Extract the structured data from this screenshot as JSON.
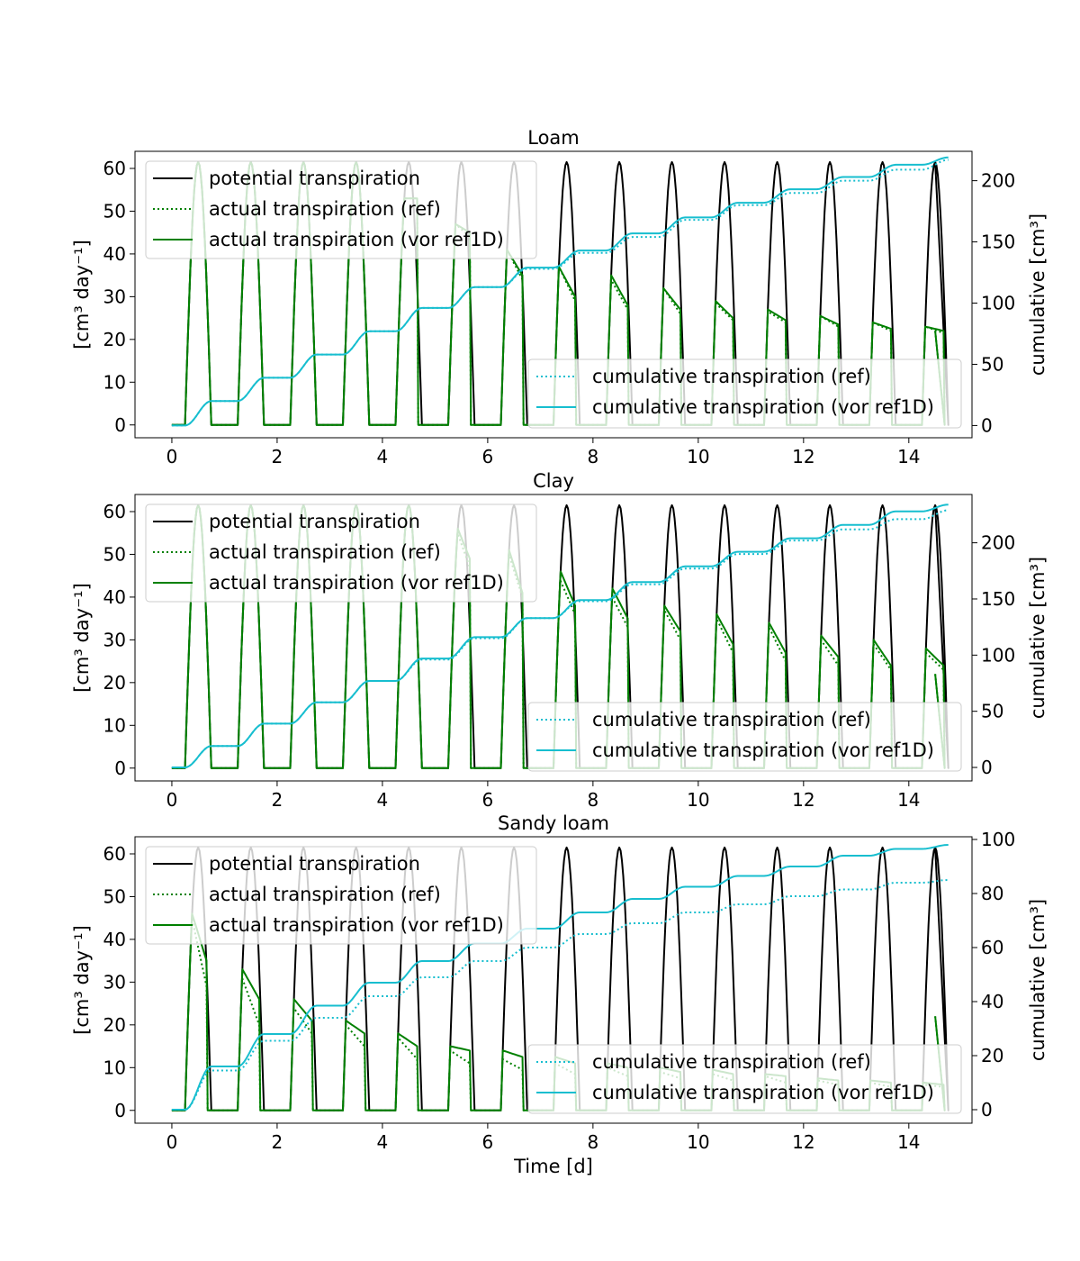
{
  "figure": {
    "xlabel": "Time [d]"
  },
  "legend_left": [
    "potential transpiration",
    " actual transpiration (ref)",
    " actual transpiration (vor ref1D)"
  ],
  "legend_right": [
    "cumulative transpiration (ref)",
    "cumulative transpiration (vor ref1D)"
  ],
  "colors": {
    "potential": "#000000",
    "actual": "#008000",
    "cumulative": "#17becf"
  },
  "chart_data": [
    {
      "type": "line",
      "title": "Loam",
      "ylabel": "[cm³ day⁻¹]",
      "ylabel2": "cumulative [cm³]",
      "xlim": [
        -0.7,
        15.2
      ],
      "ylim": [
        -3,
        64
      ],
      "ylim2": [
        -10,
        224
      ],
      "xticks": [
        0,
        2,
        4,
        6,
        8,
        10,
        12,
        14
      ],
      "yticks": [
        0,
        10,
        20,
        30,
        40,
        50,
        60
      ],
      "yticks2": [
        0,
        50,
        100,
        150,
        200
      ],
      "potential_peak": 61.5,
      "actual_ref_peaks": [
        61.5,
        61.5,
        61.5,
        61.5,
        53,
        47,
        41,
        37,
        34,
        32,
        28.5,
        26.5,
        25.5,
        24,
        23
      ],
      "actual_ref_ends": [
        61.5,
        61.5,
        61.5,
        61.5,
        53,
        44,
        34,
        29,
        27,
        26,
        24.5,
        24,
        23,
        22,
        21.5
      ],
      "actual_vor_peaks": [
        61.5,
        61.5,
        61.5,
        61.5,
        53,
        47,
        41,
        37,
        35,
        32,
        29,
        27,
        25.5,
        24,
        23
      ],
      "actual_vor_ends": [
        61.5,
        61.5,
        61.5,
        61.5,
        53,
        45,
        35,
        30,
        28,
        27,
        25,
        24.5,
        23.5,
        22.5,
        22
      ],
      "cum_ref_daily": [
        0,
        20,
        39,
        58,
        77,
        96,
        113,
        128,
        141,
        154,
        168,
        180,
        190,
        200,
        209,
        217
      ],
      "cum_vor_daily": [
        0,
        20,
        39,
        58,
        77,
        96,
        113,
        129,
        143,
        157,
        170,
        182,
        193,
        203,
        213,
        219
      ]
    },
    {
      "type": "line",
      "title": "Clay",
      "ylabel": "[cm³ day⁻¹]",
      "ylabel2": "cumulative [cm³]",
      "xlim": [
        -0.7,
        15.2
      ],
      "ylim": [
        -3,
        64
      ],
      "ylim2": [
        -12,
        243
      ],
      "xticks": [
        0,
        2,
        4,
        6,
        8,
        10,
        12,
        14
      ],
      "yticks": [
        0,
        10,
        20,
        30,
        40,
        50,
        60
      ],
      "yticks2": [
        0,
        50,
        100,
        150,
        200
      ],
      "potential_peak": 61.5,
      "actual_ref_peaks": [
        61.5,
        61.5,
        61.5,
        61.5,
        61.5,
        55,
        50,
        44,
        40,
        37,
        35,
        33,
        30,
        29,
        27
      ],
      "actual_ref_ends": [
        61.5,
        61.5,
        61.5,
        61.5,
        61.5,
        47,
        40,
        36,
        33,
        30,
        27,
        25,
        24,
        23,
        23
      ],
      "actual_vor_peaks": [
        61.5,
        61.5,
        61.5,
        61.5,
        61.5,
        56,
        51,
        46,
        42,
        38,
        36,
        34,
        31,
        30,
        28
      ],
      "actual_vor_ends": [
        61.5,
        61.5,
        61.5,
        61.5,
        61.5,
        49,
        41,
        38,
        35,
        32,
        29,
        27,
        26,
        24,
        24
      ],
      "cum_ref_daily": [
        0,
        19,
        39,
        58,
        77,
        96,
        115,
        133,
        148,
        163,
        177,
        190,
        202,
        212,
        221,
        229
      ],
      "cum_vor_daily": [
        0,
        19,
        39,
        58,
        77,
        97,
        116,
        133,
        149,
        165,
        179,
        192,
        204,
        216,
        228,
        234
      ]
    },
    {
      "type": "line",
      "title": "Sandy loam",
      "ylabel": "[cm³ day⁻¹]",
      "ylabel2": "cumulative [cm³]",
      "xlim": [
        -0.7,
        15.2
      ],
      "ylim": [
        -3,
        64
      ],
      "ylim2": [
        -5,
        101
      ],
      "xticks": [
        0,
        2,
        4,
        6,
        8,
        10,
        12,
        14
      ],
      "yticks": [
        0,
        10,
        20,
        30,
        40,
        50,
        60
      ],
      "yticks2": [
        0,
        20,
        40,
        60,
        80,
        100
      ],
      "potential_peak": 61.5,
      "actual_ref_peaks": [
        45,
        31,
        24,
        20,
        17,
        14,
        12,
        11,
        10,
        9,
        8.5,
        8,
        7,
        6.5,
        6
      ],
      "actual_ref_ends": [
        29,
        20,
        18,
        15,
        12,
        11,
        9.5,
        8.5,
        8,
        7.5,
        7,
        6.5,
        6,
        5.5,
        5.5
      ],
      "actual_vor_peaks": [
        46,
        33,
        26,
        21,
        18,
        15,
        14,
        12.5,
        11,
        10,
        9.5,
        8.5,
        7.5,
        7,
        6.5
      ],
      "actual_vor_ends": [
        35,
        26,
        21,
        18,
        15,
        14,
        12.5,
        11,
        10,
        9,
        8.5,
        8,
        7,
        6.5,
        6
      ],
      "cum_ref_daily": [
        0,
        14.5,
        25.5,
        34,
        42,
        49,
        55,
        60,
        65,
        69,
        73,
        76,
        79,
        81.5,
        84,
        85
      ],
      "cum_vor_daily": [
        0,
        16,
        28,
        38.5,
        47,
        55,
        61.5,
        67,
        73,
        78,
        82.5,
        86.5,
        90,
        94,
        96.5,
        98
      ]
    }
  ]
}
